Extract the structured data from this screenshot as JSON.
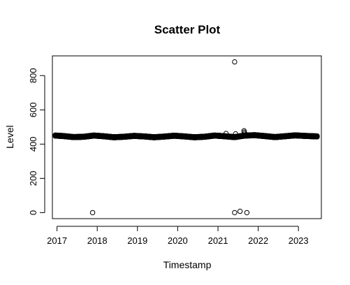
{
  "chart_data": {
    "type": "scatter",
    "title": "Scatter Plot",
    "xlabel": "Timestamp",
    "ylabel": "Level",
    "x_is_date": true,
    "xlim": [
      "2016-11-20",
      "2023-07-28"
    ],
    "ylim": [
      -35,
      915
    ],
    "x_ticks": [
      "2017",
      "2018",
      "2019",
      "2020",
      "2021",
      "2022",
      "2023"
    ],
    "x_tick_dates": [
      "2017-01-01",
      "2018-01-01",
      "2019-01-01",
      "2020-01-01",
      "2021-01-01",
      "2022-01-01",
      "2023-01-01"
    ],
    "y_ticks": [
      "0",
      "200",
      "400",
      "600",
      "800"
    ],
    "y_tick_values": [
      0,
      200,
      400,
      600,
      800
    ],
    "grid": false,
    "legend": "none",
    "series": [
      {
        "marker": "open-circle",
        "color": "#000000",
        "dense_band": {
          "x_start": "2016-12-15",
          "x_end": "2023-06-20",
          "level_profile": [
            [
              "2016-12-15",
              450
            ],
            [
              "2017-03-01",
              447
            ],
            [
              "2017-06-01",
              441
            ],
            [
              "2017-09-01",
              443
            ],
            [
              "2017-12-01",
              450
            ],
            [
              "2018-03-01",
              446
            ],
            [
              "2018-06-01",
              440
            ],
            [
              "2018-09-01",
              443
            ],
            [
              "2018-12-01",
              448
            ],
            [
              "2019-03-01",
              445
            ],
            [
              "2019-06-01",
              440
            ],
            [
              "2019-09-01",
              444
            ],
            [
              "2019-12-01",
              449
            ],
            [
              "2020-03-01",
              445
            ],
            [
              "2020-06-01",
              440
            ],
            [
              "2020-09-01",
              443
            ],
            [
              "2020-12-01",
              450
            ],
            [
              "2021-03-01",
              446
            ],
            [
              "2021-06-01",
              441
            ],
            [
              "2021-09-01",
              450
            ],
            [
              "2021-12-01",
              452
            ],
            [
              "2022-03-01",
              447
            ],
            [
              "2022-06-01",
              441
            ],
            [
              "2022-09-01",
              446
            ],
            [
              "2022-12-01",
              451
            ],
            [
              "2023-03-01",
              448
            ],
            [
              "2023-06-20",
              445
            ]
          ]
        },
        "outliers": [
          {
            "x": "2017-11-20",
            "y": 0
          },
          {
            "x": "2021-03-15",
            "y": 462
          },
          {
            "x": "2021-06-01",
            "y": 880
          },
          {
            "x": "2021-06-01",
            "y": 0
          },
          {
            "x": "2021-06-10",
            "y": 460
          },
          {
            "x": "2021-07-20",
            "y": 8
          },
          {
            "x": "2021-08-25",
            "y": 478
          },
          {
            "x": "2021-08-28",
            "y": 470
          },
          {
            "x": "2021-09-01",
            "y": 462
          },
          {
            "x": "2021-09-20",
            "y": 0
          }
        ]
      }
    ]
  }
}
